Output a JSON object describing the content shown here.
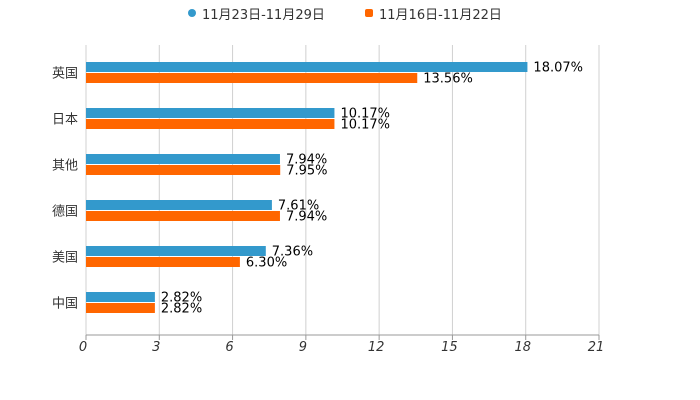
{
  "chart_data": {
    "type": "bar",
    "orientation": "horizontal",
    "title": "",
    "xlabel": "",
    "ylabel": "",
    "categories": [
      "英国",
      "日本",
      "其他",
      "德国",
      "美国",
      "中国"
    ],
    "series": [
      {
        "name": "11月23日-11月29日",
        "color": "#3399cc",
        "values": [
          18.07,
          10.17,
          7.94,
          7.61,
          7.36,
          2.82
        ],
        "labels": [
          "18.07%",
          "10.17%",
          "7.94%",
          "7.61%",
          "7.36%",
          "2.82%"
        ]
      },
      {
        "name": "11月16日-11月22日",
        "color": "#ff6600",
        "values": [
          13.56,
          10.17,
          7.95,
          7.94,
          6.3,
          2.82
        ],
        "labels": [
          "13.56%",
          "10.17%",
          "7.95%",
          "7.94%",
          "6.30%",
          "2.82%"
        ]
      }
    ],
    "xlim": [
      0,
      21
    ],
    "ticks": [
      0,
      3,
      6,
      9,
      12,
      15,
      18,
      21
    ],
    "tick_labels": [
      "0",
      "3",
      "6",
      "9",
      "12",
      "15",
      "18",
      "21"
    ],
    "grid": true,
    "legend_position": "top-center"
  }
}
